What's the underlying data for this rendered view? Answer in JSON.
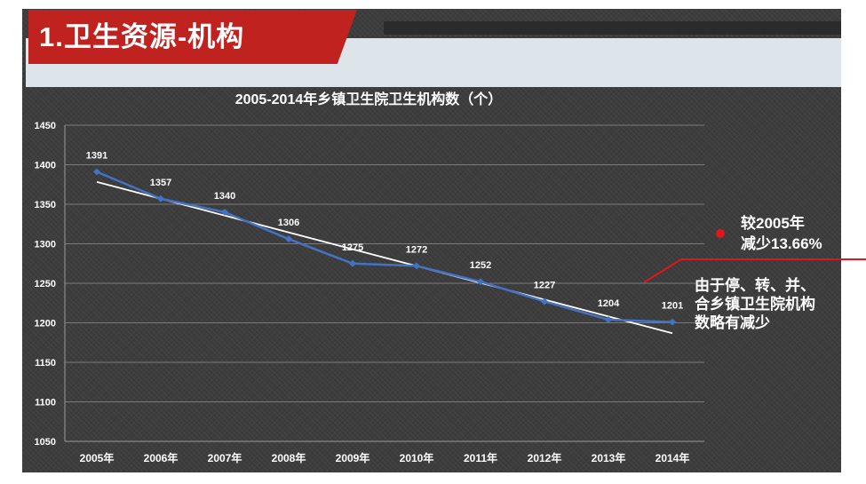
{
  "slide": {
    "title": "1.卫生资源-机构",
    "colors": {
      "banner": "#c0231f",
      "series": "#4472c4",
      "trend": "#ffffff",
      "callout": "#e0161b"
    }
  },
  "chart_data": {
    "type": "line",
    "title": "2005-2014年乡镇卫生院卫生机构数（个）",
    "x": [
      "2005年",
      "2006年",
      "2007年",
      "2008年",
      "2009年",
      "2010年",
      "2011年",
      "2012年",
      "2013年",
      "2014年"
    ],
    "series": [
      {
        "values": [
          1391,
          1357,
          1340,
          1306,
          1275,
          1272,
          1252,
          1227,
          1204,
          1201
        ],
        "marker": "diamond",
        "color": "#4472c4"
      }
    ],
    "data_labels": [
      "1391",
      "1357",
      "1340",
      "1306",
      "1275",
      "1272",
      "1252",
      "1227",
      "1204",
      "1201"
    ],
    "trendline": {
      "type": "linear",
      "color": "#ffffff"
    },
    "ylim": [
      1050,
      1450
    ],
    "yticks": [
      "1050",
      "1100",
      "1150",
      "1200",
      "1250",
      "1300",
      "1350",
      "1400",
      "1450"
    ],
    "grid": true,
    "legend": "none"
  },
  "annotations": {
    "change_line1": "较2005年",
    "change_line2": "减少13.66%",
    "reason_line1": "由于停、转、并、",
    "reason_line2": "合乡镇卫生院机构",
    "reason_line3": "数略有减少"
  }
}
